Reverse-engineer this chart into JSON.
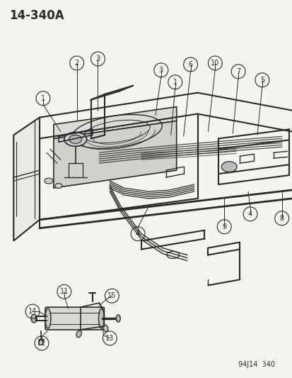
{
  "title": "14-340A",
  "footer": "94J14  340",
  "bg_color": "#f5f5f0",
  "line_color": "#2a2a2a",
  "fig_width": 4.14,
  "fig_height": 5.33,
  "dpi": 100
}
